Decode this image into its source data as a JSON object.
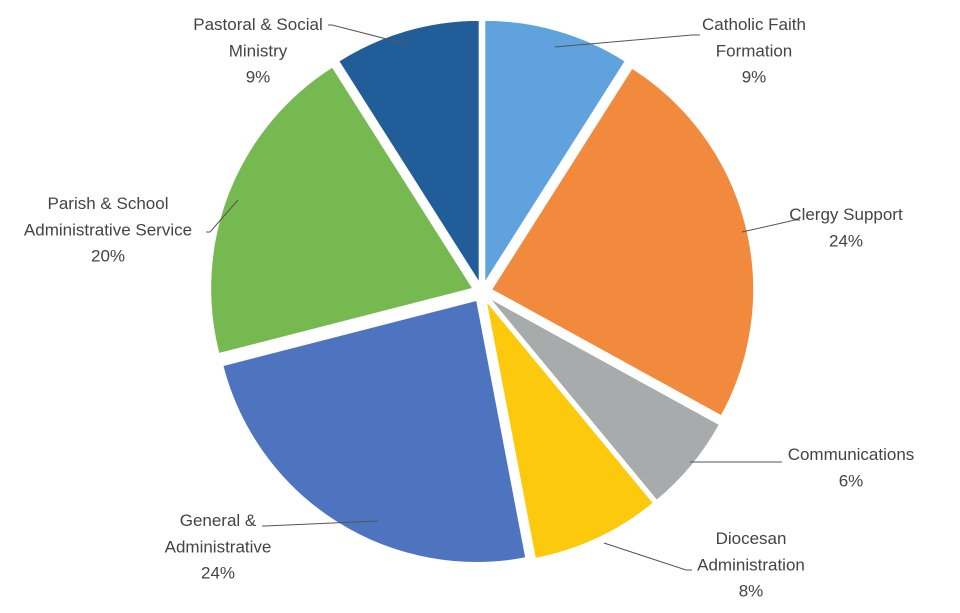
{
  "chart_data": {
    "type": "pie",
    "title": "",
    "slices": [
      {
        "label": "Catholic Faith Formation",
        "label_lines": [
          "Catholic Faith",
          "Formation"
        ],
        "percent_text": "9%",
        "value": 9,
        "color": "#5fa2dd"
      },
      {
        "label": "Clergy Support",
        "label_lines": [
          "Clergy Support"
        ],
        "percent_text": "24%",
        "value": 24,
        "color": "#f28a3d"
      },
      {
        "label": "Communications",
        "label_lines": [
          "Communications"
        ],
        "percent_text": "6%",
        "value": 6,
        "color": "#a8abab"
      },
      {
        "label": "Diocesan Administration",
        "label_lines": [
          "Diocesan",
          "Administration"
        ],
        "percent_text": "8%",
        "value": 8,
        "color": "#fdc90c"
      },
      {
        "label": "General & Administrative",
        "label_lines": [
          "General &",
          "Administrative"
        ],
        "percent_text": "24%",
        "value": 24,
        "color": "#4e74c0"
      },
      {
        "label": "Parish & School Administrative Service",
        "label_lines": [
          "Parish & School",
          "Administrative Service"
        ],
        "percent_text": "20%",
        "value": 20,
        "color": "#76b951"
      },
      {
        "label": "Pastoral & Social Ministry",
        "label_lines": [
          "Pastoral & Social",
          "Ministry"
        ],
        "percent_text": "9%",
        "value": 9,
        "color": "#215e99"
      }
    ],
    "legend": "none",
    "exploded": true,
    "start_angle_deg": 0,
    "direction": "clockwise"
  }
}
